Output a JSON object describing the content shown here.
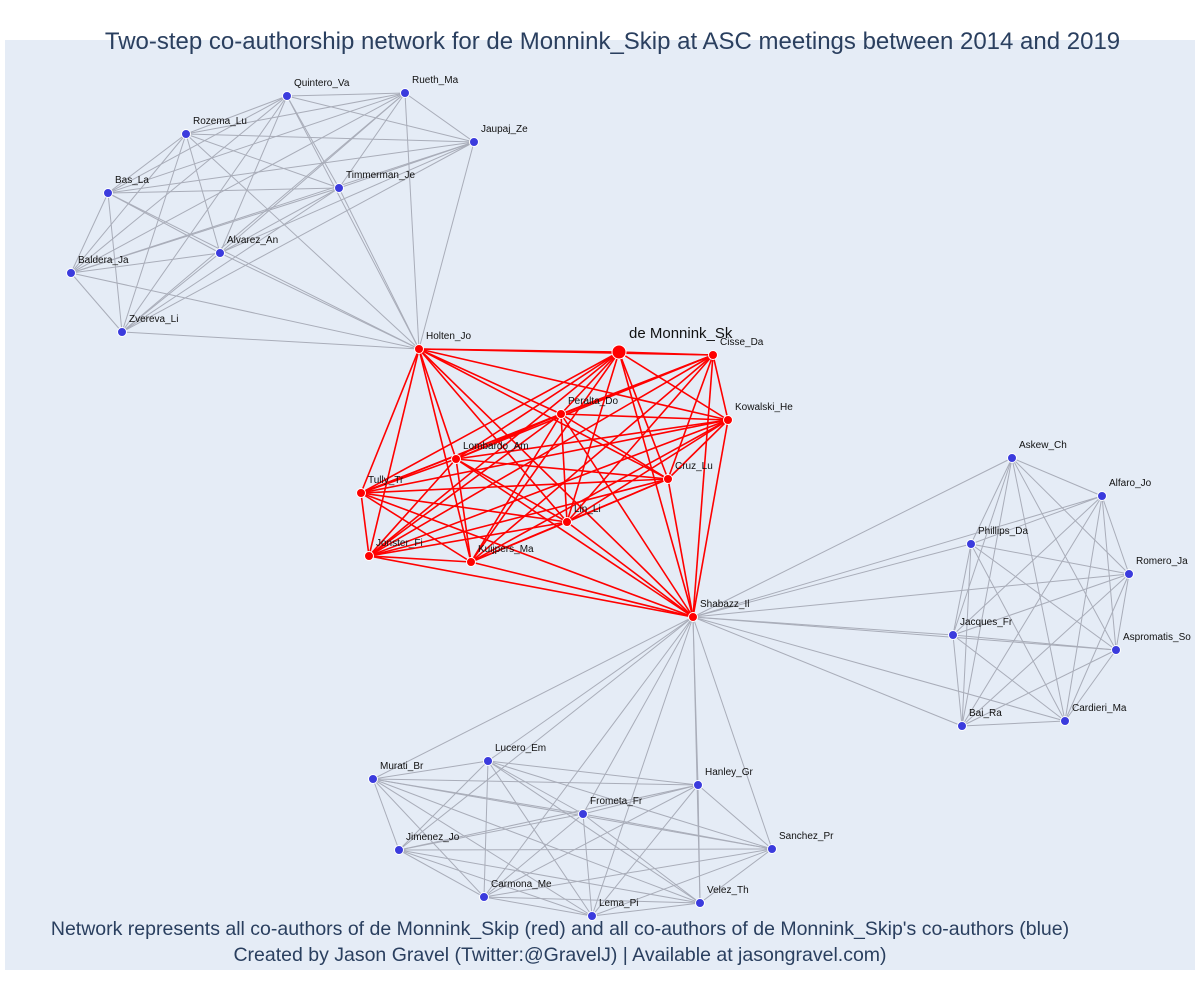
{
  "title": "Two-step co-authorship network for de Monnink_Skip at ASC meetings between 2014 and 2019",
  "footnotes": [
    "Network represents all co-authors of de Monnink_Skip (red) and all co-authors of de Monnink_Skip's co-authors (blue)",
    "Created by Jason Gravel (Twitter:@GravelJ) | Available at jasongravel.com)"
  ],
  "colors": {
    "coauthor": "#ff0000",
    "second_step": "#3b3bdd",
    "second_step_edge": "#a9adb9",
    "background": "#e5ecf6"
  },
  "network": {
    "ego": "de Monnink_Sk",
    "nodes": [
      {
        "id": "ego",
        "label": "de Monnink_Sk",
        "group": "ego"
      },
      {
        "id": "holten",
        "label": "Holten_Jo",
        "group": "coauthor"
      },
      {
        "id": "cisse",
        "label": "Cisse_Da",
        "group": "coauthor"
      },
      {
        "id": "peralta",
        "label": "Peralta_Do",
        "group": "coauthor"
      },
      {
        "id": "kowalski",
        "label": "Kowalski_He",
        "group": "coauthor"
      },
      {
        "id": "lombardo",
        "label": "Lombardo_Am",
        "group": "coauthor"
      },
      {
        "id": "tully",
        "label": "Tully_Tr",
        "group": "coauthor"
      },
      {
        "id": "cruz",
        "label": "Cruz_Lu",
        "group": "coauthor"
      },
      {
        "id": "lin",
        "label": "Lin_Li",
        "group": "coauthor"
      },
      {
        "id": "jonster",
        "label": "Jonster_Fi",
        "group": "coauthor"
      },
      {
        "id": "kuijpers",
        "label": "Kuijpers_Ma",
        "group": "coauthor"
      },
      {
        "id": "shabazz",
        "label": "Shabazz_Il",
        "group": "coauthor"
      },
      {
        "id": "quintero",
        "label": "Quintero_Va",
        "group": "second"
      },
      {
        "id": "rueth",
        "label": "Rueth_Ma",
        "group": "second"
      },
      {
        "id": "rozema",
        "label": "Rozema_Lu",
        "group": "second"
      },
      {
        "id": "jaupaj",
        "label": "Jaupaj_Ze",
        "group": "second"
      },
      {
        "id": "bas",
        "label": "Bas_La",
        "group": "second"
      },
      {
        "id": "timmerman",
        "label": "Timmerman_Je",
        "group": "second"
      },
      {
        "id": "alvarez",
        "label": "Alvarez_An",
        "group": "second"
      },
      {
        "id": "baldera",
        "label": "Baldera_Ja",
        "group": "second"
      },
      {
        "id": "zvereva",
        "label": "Zvereva_Li",
        "group": "second"
      },
      {
        "id": "askew",
        "label": "Askew_Ch",
        "group": "second"
      },
      {
        "id": "alfaro",
        "label": "Alfaro_Jo",
        "group": "second"
      },
      {
        "id": "phillips",
        "label": "Phillips_Da",
        "group": "second"
      },
      {
        "id": "romero",
        "label": "Romero_Ja",
        "group": "second"
      },
      {
        "id": "jacques",
        "label": "Jacques_Fr",
        "group": "second"
      },
      {
        "id": "aspromatis",
        "label": "Aspromatis_So",
        "group": "second"
      },
      {
        "id": "bai",
        "label": "Bai_Ra",
        "group": "second"
      },
      {
        "id": "cardieri",
        "label": "Cardieri_Ma",
        "group": "second"
      },
      {
        "id": "lucero",
        "label": "Lucero_Em",
        "group": "second"
      },
      {
        "id": "murati",
        "label": "Murati_Br",
        "group": "second"
      },
      {
        "id": "hanley",
        "label": "Hanley_Gr",
        "group": "second"
      },
      {
        "id": "frometa",
        "label": "Frometa_Fr",
        "group": "second"
      },
      {
        "id": "jimenez",
        "label": "Jimenez_Jo",
        "group": "second"
      },
      {
        "id": "sanchez",
        "label": "Sanchez_Pr",
        "group": "second"
      },
      {
        "id": "carmona",
        "label": "Carmona_Me",
        "group": "second"
      },
      {
        "id": "velez",
        "label": "Velez_Th",
        "group": "second"
      },
      {
        "id": "lema",
        "label": "Lema_Pi",
        "group": "second"
      }
    ],
    "clusters": {
      "coauthors": [
        "ego",
        "holten",
        "cisse",
        "peralta",
        "kowalski",
        "lombardo",
        "tully",
        "cruz",
        "lin",
        "jonster",
        "kuijpers",
        "shabazz"
      ],
      "top_left": [
        "holten",
        "quintero",
        "rueth",
        "rozema",
        "jaupaj",
        "bas",
        "timmerman",
        "alvarez",
        "baldera",
        "zvereva"
      ],
      "right": [
        "shabazz",
        "askew",
        "alfaro",
        "phillips",
        "romero",
        "jacques",
        "aspromatis",
        "bai",
        "cardieri"
      ],
      "bottom": [
        "shabazz",
        "lucero",
        "murati",
        "hanley",
        "frometa",
        "jimenez",
        "sanchez",
        "carmona",
        "velez",
        "lema"
      ]
    }
  }
}
